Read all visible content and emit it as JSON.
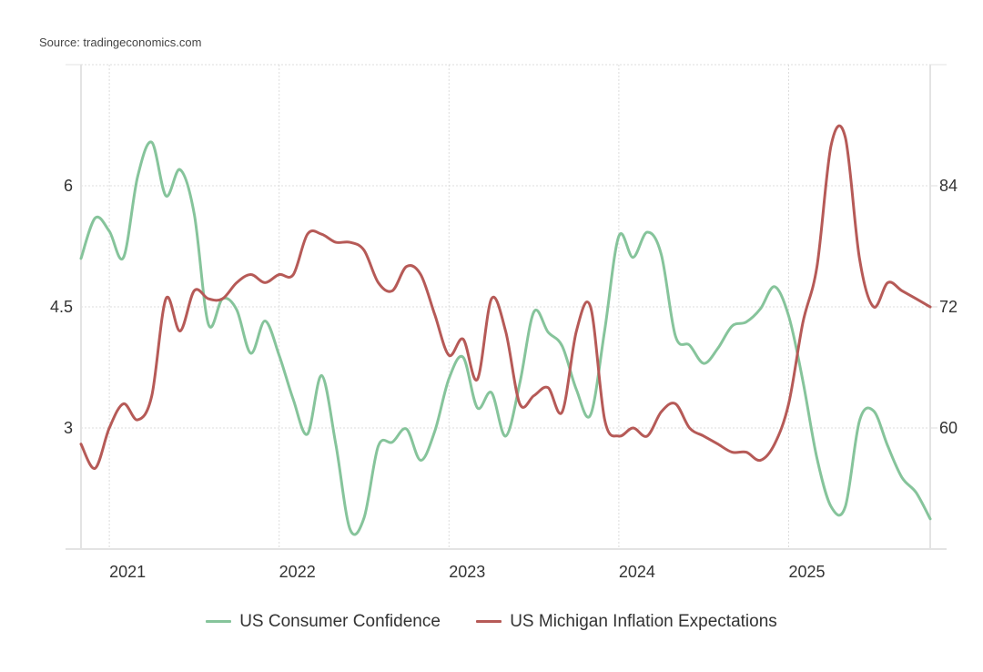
{
  "source_label": "Source: tradingeconomics.com",
  "chart_data": {
    "type": "line",
    "title": "",
    "xlabel": "",
    "ylabel": "",
    "x": [
      "2020-11",
      "2020-12",
      "2021-01",
      "2021-02",
      "2021-03",
      "2021-04",
      "2021-05",
      "2021-06",
      "2021-07",
      "2021-08",
      "2021-09",
      "2021-10",
      "2021-11",
      "2021-12",
      "2022-01",
      "2022-02",
      "2022-03",
      "2022-04",
      "2022-05",
      "2022-06",
      "2022-07",
      "2022-08",
      "2022-09",
      "2022-10",
      "2022-11",
      "2022-12",
      "2023-01",
      "2023-02",
      "2023-03",
      "2023-04",
      "2023-05",
      "2023-06",
      "2023-07",
      "2023-08",
      "2023-09",
      "2023-10",
      "2023-11",
      "2023-12",
      "2024-01",
      "2024-02",
      "2024-03",
      "2024-04",
      "2024-05",
      "2024-06",
      "2024-07",
      "2024-08",
      "2024-09",
      "2024-10",
      "2024-11",
      "2024-12",
      "2025-01",
      "2025-02",
      "2025-03",
      "2025-04",
      "2025-05",
      "2025-06",
      "2025-07",
      "2025-08",
      "2025-09",
      "2025-10",
      "2025-11"
    ],
    "x_ticks": [
      "2021",
      "2022",
      "2023",
      "2024",
      "2025"
    ],
    "y_left": {
      "ylim": [
        1.5,
        7.5
      ],
      "ticks": [
        "3",
        "4.5",
        "6"
      ],
      "tick_values": [
        3,
        4.5,
        6
      ]
    },
    "y_right": {
      "ylim": [
        48,
        96
      ],
      "ticks": [
        "60",
        "72",
        "84"
      ],
      "tick_values": [
        60,
        72,
        84
      ]
    },
    "grid": true,
    "legend_position": "bottom-center",
    "series": [
      {
        "name": "US Consumer Confidence",
        "axis": "right",
        "color": "#86c49b",
        "values": [
          76.8,
          80.8,
          79.5,
          76.9,
          84.9,
          88.3,
          83.0,
          85.6,
          81.2,
          70.3,
          72.8,
          71.7,
          67.4,
          70.6,
          67.2,
          62.8,
          59.4,
          65.2,
          58.4,
          50.0,
          51.1,
          58.2,
          58.6,
          59.9,
          56.8,
          59.7,
          64.9,
          67.0,
          62.0,
          63.5,
          59.2,
          64.4,
          71.5,
          69.5,
          68.1,
          63.8,
          61.3,
          69.7,
          79.0,
          76.9,
          79.4,
          77.2,
          69.1,
          68.2,
          66.4,
          67.9,
          70.1,
          70.5,
          71.8,
          74.0,
          71.1,
          64.7,
          57.0,
          52.2,
          52.2,
          60.7,
          61.7,
          58.2,
          55.1,
          53.6,
          51.0
        ]
      },
      {
        "name": "US Michigan Inflation Expectations",
        "axis": "left",
        "color": "#b65a57",
        "values": [
          2.8,
          2.5,
          3.0,
          3.3,
          3.1,
          3.4,
          4.6,
          4.2,
          4.7,
          4.6,
          4.6,
          4.8,
          4.9,
          4.8,
          4.9,
          4.9,
          5.4,
          5.4,
          5.3,
          5.3,
          5.2,
          4.8,
          4.7,
          5.0,
          4.9,
          4.4,
          3.9,
          4.1,
          3.6,
          4.6,
          4.2,
          3.3,
          3.4,
          3.5,
          3.2,
          4.2,
          4.5,
          3.1,
          2.9,
          3.0,
          2.9,
          3.2,
          3.3,
          3.0,
          2.9,
          2.8,
          2.7,
          2.7,
          2.6,
          2.8,
          3.3,
          4.3,
          5.0,
          6.5,
          6.6,
          5.1,
          4.5,
          4.8,
          4.7,
          4.6,
          4.5
        ]
      }
    ]
  }
}
